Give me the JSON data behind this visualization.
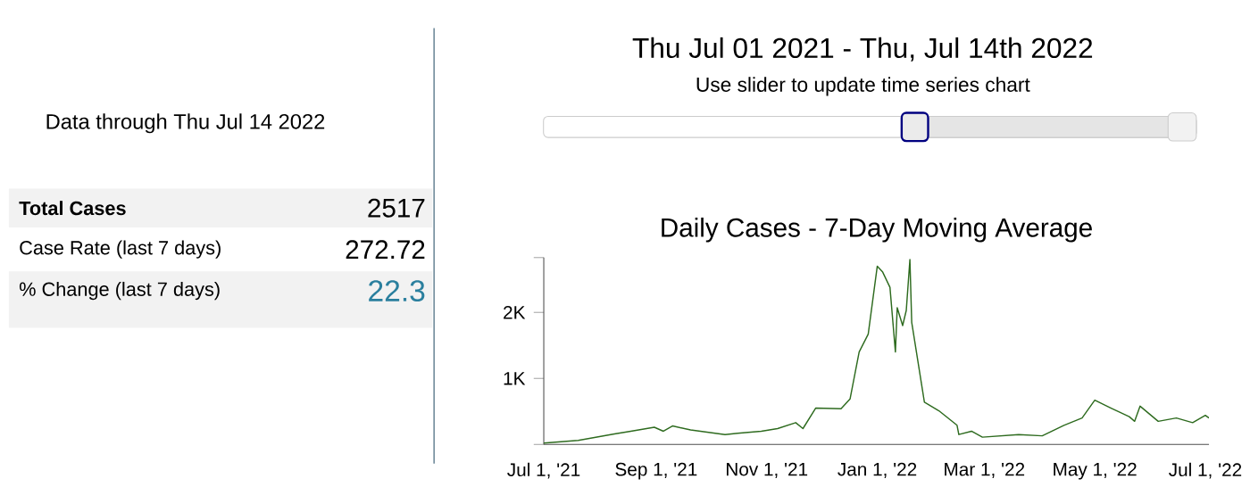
{
  "chart_data": [
    {
      "type": "other",
      "title": "Data through Thu Jul 14 2022",
      "annotations": [
        "Total Cases",
        "2517",
        "Case Rate (last 7 days)",
        "272.72",
        "% Change (last 7 days)",
        "22.3"
      ]
    },
    {
      "type": "line",
      "title": "Daily Cases - 7-Day Moving Average",
      "annotations": [
        "Thu Jul 01 2021 - Thu, Jul 14th 2022",
        "Use slider to update time series chart"
      ],
      "x": [
        "2021-07-01",
        "2021-07-20",
        "2021-08-09",
        "2021-08-18",
        "2021-08-31",
        "2021-09-05",
        "2021-09-10",
        "2021-09-20",
        "2021-10-09",
        "2021-10-16",
        "2021-10-29",
        "2021-11-07",
        "2021-11-17",
        "2021-11-21",
        "2021-11-28",
        "2021-12-12",
        "2021-12-17",
        "2021-12-22",
        "2021-12-27",
        "2022-01-01",
        "2022-01-04",
        "2022-01-08",
        "2022-01-11",
        "2022-01-12",
        "2022-01-15",
        "2022-01-17",
        "2022-01-19",
        "2022-01-20",
        "2022-01-27",
        "2022-02-04",
        "2022-02-14",
        "2022-02-15",
        "2022-02-22",
        "2022-02-28",
        "2022-03-20",
        "2022-04-02",
        "2022-04-14",
        "2022-04-24",
        "2022-05-01",
        "2022-05-10",
        "2022-05-20",
        "2022-05-23",
        "2022-05-26",
        "2022-06-05",
        "2022-06-15",
        "2022-06-24",
        "2022-07-01",
        "2022-07-03"
      ],
      "series": [
        {
          "color": "#2e6b1f",
          "values": [
            20,
            60,
            160,
            200,
            260,
            200,
            280,
            220,
            150,
            170,
            200,
            240,
            330,
            240,
            550,
            540,
            690,
            1400,
            1670,
            2700,
            2610,
            2380,
            1400,
            2070,
            1800,
            2030,
            2800,
            1850,
            640,
            510,
            290,
            150,
            200,
            110,
            150,
            130,
            290,
            400,
            670,
            550,
            420,
            350,
            580,
            350,
            400,
            330,
            440,
            400
          ]
        }
      ],
      "xlim": [
        "2021-07-01",
        "2022-07-03"
      ],
      "ylim": [
        0,
        2830
      ],
      "xticks": [
        {
          "value": "2021-07-01",
          "label": "Jul 1, '21"
        },
        {
          "value": "2021-09-01",
          "label": "Sep 1, '21"
        },
        {
          "value": "2021-11-01",
          "label": "Nov 1, '21"
        },
        {
          "value": "2022-01-01",
          "label": "Jan 1, '22"
        },
        {
          "value": "2022-03-01",
          "label": "Mar 1, '22"
        },
        {
          "value": "2022-05-01",
          "label": "May 1, '22"
        },
        {
          "value": "2022-07-01",
          "label": "Jul 1, '22"
        }
      ],
      "yticks": [
        {
          "value": 0,
          "label": null
        },
        {
          "value": 1000,
          "label": "1K"
        },
        {
          "value": 2000,
          "label": "2K"
        },
        {
          "value": 2830,
          "label": null
        }
      ],
      "grid": false,
      "marker": "none",
      "line_style": "solid"
    }
  ]
}
